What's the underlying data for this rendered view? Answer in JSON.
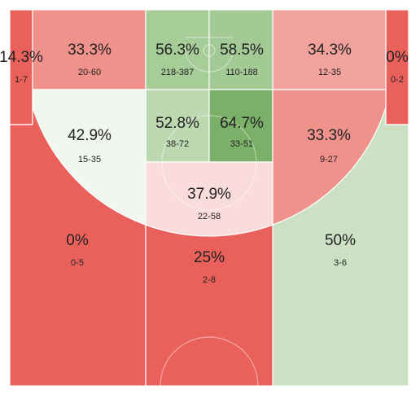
{
  "chart_data": {
    "type": "heatmap",
    "title": "",
    "zones": [
      {
        "id": "left-corner-3",
        "pct": "14.3%",
        "made": 1,
        "att": 7,
        "attempts": "1-7",
        "color": "#ea615b"
      },
      {
        "id": "left-upper-mid",
        "pct": "33.3%",
        "made": 20,
        "att": 60,
        "attempts": "20-60",
        "color": "#f0928c"
      },
      {
        "id": "paint-top-left",
        "pct": "56.3%",
        "made": 218,
        "att": 387,
        "attempts": "218-387",
        "color": "#a6cc98"
      },
      {
        "id": "paint-top-right",
        "pct": "58.5%",
        "made": 110,
        "att": 188,
        "attempts": "110-188",
        "color": "#a3c995"
      },
      {
        "id": "right-upper-mid",
        "pct": "34.3%",
        "made": 12,
        "att": 35,
        "attempts": "12-35",
        "color": "#f2a29c"
      },
      {
        "id": "right-corner-3",
        "pct": "0%",
        "made": 0,
        "att": 2,
        "attempts": "0-2",
        "color": "#ea615b"
      },
      {
        "id": "left-elbow",
        "pct": "42.9%",
        "made": 15,
        "att": 35,
        "attempts": "15-35",
        "color": "#f1f6ee"
      },
      {
        "id": "paint-mid-left",
        "pct": "52.8%",
        "made": 38,
        "att": 72,
        "attempts": "38-72",
        "color": "#bcd9b1"
      },
      {
        "id": "paint-mid-right",
        "pct": "64.7%",
        "made": 33,
        "att": 51,
        "attempts": "33-51",
        "color": "#7bb068"
      },
      {
        "id": "right-elbow",
        "pct": "33.3%",
        "made": 9,
        "att": 27,
        "attempts": "9-27",
        "color": "#f0928c"
      },
      {
        "id": "top-key",
        "pct": "37.9%",
        "made": 22,
        "att": 58,
        "attempts": "22-58",
        "color": "#fbdcdc"
      },
      {
        "id": "left-wing-3",
        "pct": "0%",
        "made": 0,
        "att": 5,
        "attempts": "0-5",
        "color": "#ea615b"
      },
      {
        "id": "top-3",
        "pct": "25%",
        "made": 2,
        "att": 8,
        "attempts": "2-8",
        "color": "#ea615b"
      },
      {
        "id": "right-wing-3",
        "pct": "50%",
        "made": 3,
        "att": 6,
        "attempts": "3-6",
        "color": "#cce0c4"
      }
    ]
  }
}
